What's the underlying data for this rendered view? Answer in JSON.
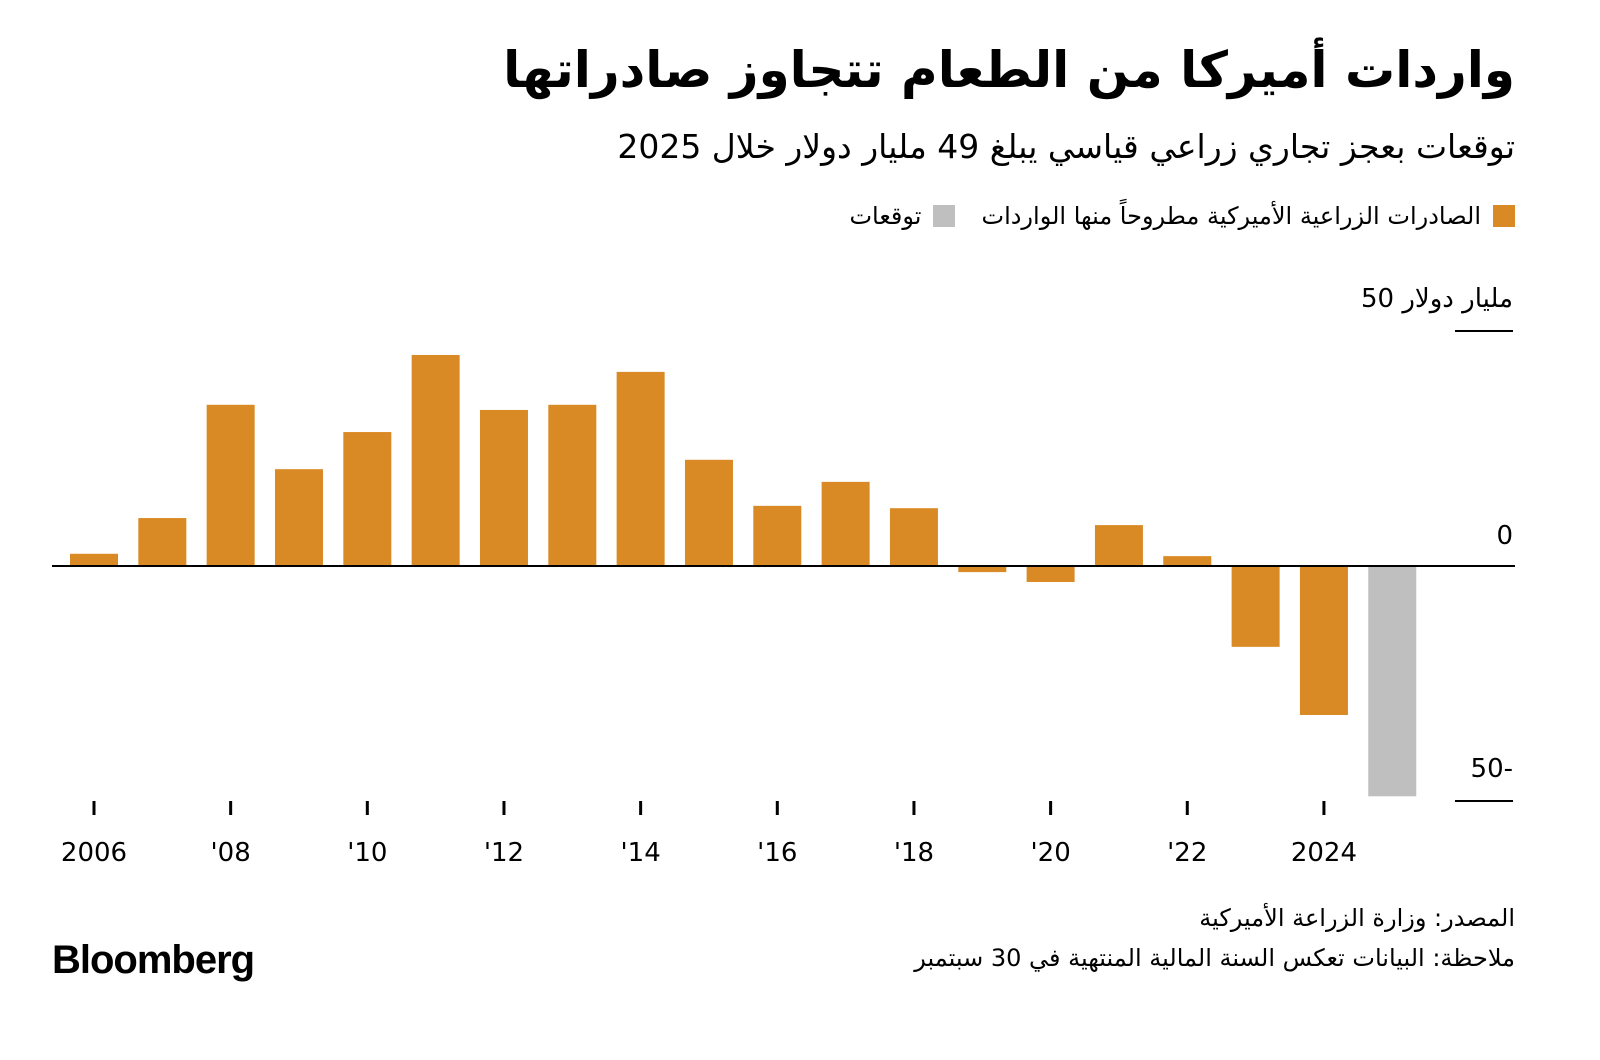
{
  "title": "واردات أميركا من الطعام تتجاوز صادراتها",
  "subtitle": "توقعات بعجز تجاري زراعي قياسي يبلغ 49 مليار دولار خلال 2025",
  "legend": [
    {
      "label": "الصادرات الزراعية الأميركية مطروحاً منها الواردات",
      "color": "#DA8A25"
    },
    {
      "label": "توقعات",
      "color": "#BFBFBF"
    }
  ],
  "chart_data": {
    "type": "bar",
    "title": "واردات أميركا من الطعام تتجاوز صادراتها",
    "ylabel": "مليار دولار",
    "ylim": [
      -50,
      50
    ],
    "y_ticks": [
      {
        "value": 50,
        "label": "50 مليار دولار"
      },
      {
        "value": 0,
        "label": "0"
      },
      {
        "value": -50,
        "label": "50-"
      }
    ],
    "x_ticks": [
      {
        "year": 2006,
        "label": "2006"
      },
      {
        "year": 2008,
        "label": "'08"
      },
      {
        "year": 2010,
        "label": "'10"
      },
      {
        "year": 2012,
        "label": "'12"
      },
      {
        "year": 2014,
        "label": "'14"
      },
      {
        "year": 2016,
        "label": "'16"
      },
      {
        "year": 2018,
        "label": "'18"
      },
      {
        "year": 2020,
        "label": "'20"
      },
      {
        "year": 2022,
        "label": "'22"
      },
      {
        "year": 2024,
        "label": "2024"
      }
    ],
    "categories": [
      2006,
      2007,
      2008,
      2009,
      2010,
      2011,
      2012,
      2013,
      2014,
      2015,
      2016,
      2017,
      2018,
      2019,
      2020,
      2021,
      2022,
      2023,
      2024,
      2025
    ],
    "values": [
      2.6,
      10.2,
      34.3,
      20.6,
      28.5,
      44.9,
      33.2,
      34.3,
      41.3,
      22.6,
      12.8,
      17.9,
      12.3,
      -1.3,
      -3.4,
      8.7,
      2.1,
      -17.2,
      -31.7,
      -49
    ],
    "forecast": [
      false,
      false,
      false,
      false,
      false,
      false,
      false,
      false,
      false,
      false,
      false,
      false,
      false,
      false,
      false,
      false,
      false,
      false,
      false,
      true
    ],
    "colors": {
      "actual": "#DA8A25",
      "forecast": "#BFBFBF"
    },
    "grid": false
  },
  "footer": {
    "source": "المصدر: وزارة الزراعة الأميركية",
    "note": "ملاحظة: البيانات تعكس السنة المالية المنتهية في 30 سبتمبر"
  },
  "logo": "Bloomberg"
}
